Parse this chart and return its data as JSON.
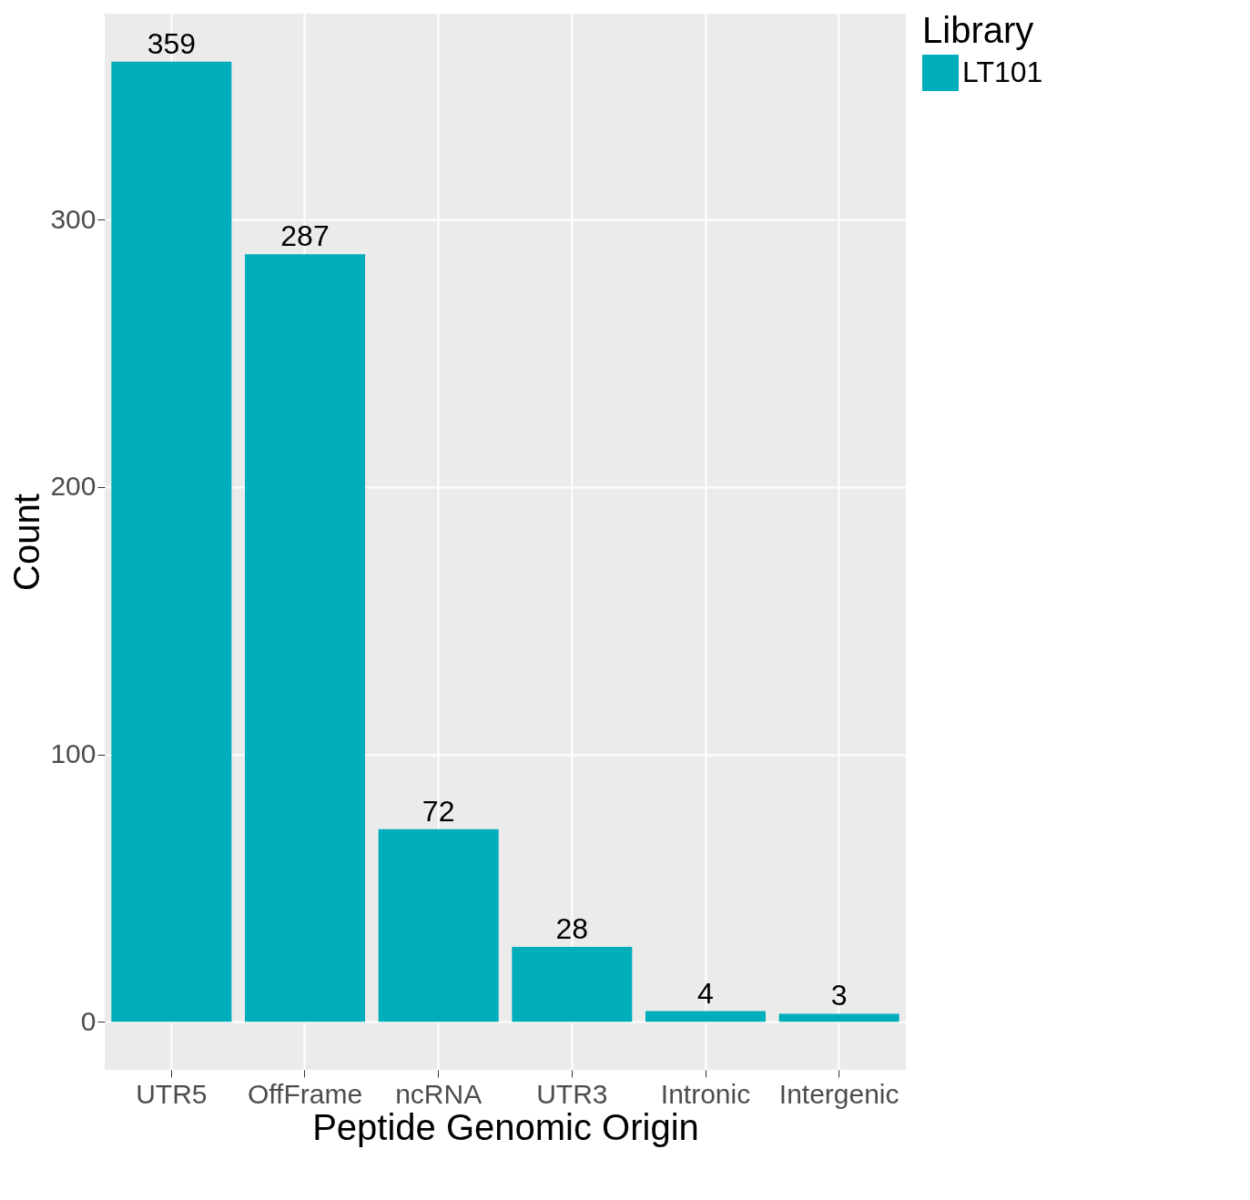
{
  "chart_data": {
    "type": "bar",
    "xlabel": "Peptide Genomic Origin",
    "ylabel": "Count",
    "legend_title": "Library",
    "categories": [
      "UTR5",
      "OffFrame",
      "ncRNA",
      "UTR3",
      "Intronic",
      "Intergenic"
    ],
    "series": [
      {
        "name": "LT101",
        "color": "#00adbb",
        "values": [
          359,
          287,
          72,
          28,
          4,
          3
        ]
      }
    ],
    "ylim": [
      -17.95,
      376.95
    ],
    "yticks": [
      0,
      100,
      200,
      300
    ],
    "grid": true,
    "legend": "right",
    "data_labels": true
  }
}
